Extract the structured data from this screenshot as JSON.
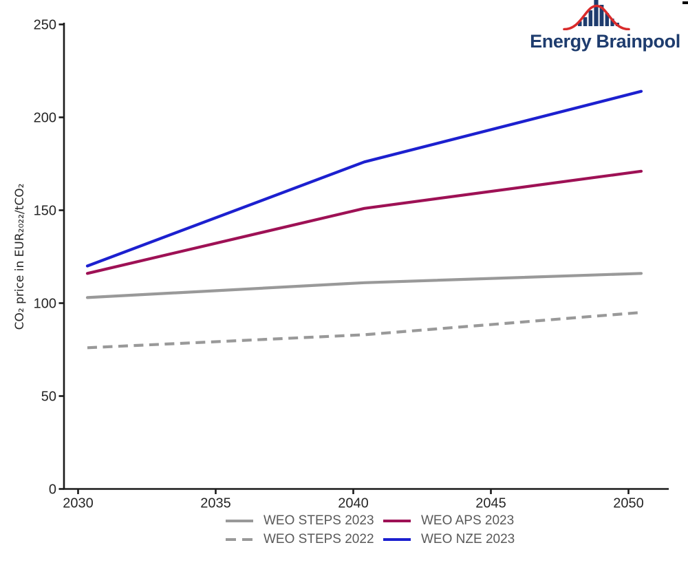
{
  "logo": {
    "name": "Energy Brainpool"
  },
  "theme": {
    "logo_navy": "#1e3c6e",
    "logo_red": "#d92b2b",
    "axis_color": "#1a1a1a",
    "tick_label_color": "#262626",
    "legend_text_color": "#595959",
    "background": "#ffffff"
  },
  "chart_data": {
    "type": "line",
    "title": "",
    "xlabel": "",
    "ylabel": "CO₂ price in EUR₂₀₂₂/tCO₂",
    "x_ticks": [
      2030,
      2035,
      2040,
      2045,
      2050
    ],
    "y_ticks": [
      0,
      50,
      100,
      150,
      200,
      250
    ],
    "xlim": [
      2030,
      2050
    ],
    "ylim": [
      0,
      250
    ],
    "grid": false,
    "legend_position": "bottom",
    "x": [
      2030,
      2040,
      2050
    ],
    "series": [
      {
        "name": "WEO STEPS 2023",
        "values": [
          103,
          111,
          116
        ],
        "color": "#999999",
        "dash": "solid"
      },
      {
        "name": "WEO STEPS 2022",
        "values": [
          76,
          83,
          95
        ],
        "color": "#999999",
        "dash": "dashed"
      },
      {
        "name": "WEO APS 2023",
        "values": [
          116,
          151,
          171
        ],
        "color": "#9e1155",
        "dash": "solid"
      },
      {
        "name": "WEO NZE 2023",
        "values": [
          120,
          176,
          214
        ],
        "color": "#1c20cf",
        "dash": "solid"
      }
    ],
    "legend_order_row_major": [
      "WEO STEPS 2023",
      "WEO APS 2023",
      "WEO STEPS 2022",
      "WEO NZE 2023"
    ]
  }
}
